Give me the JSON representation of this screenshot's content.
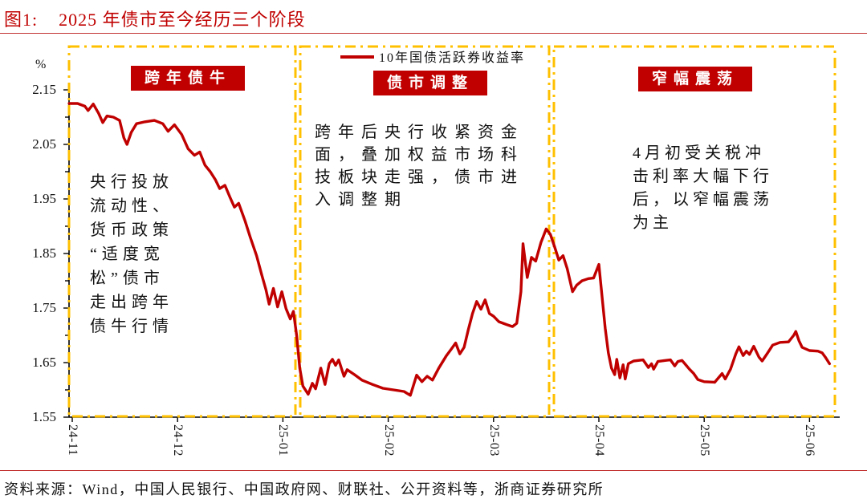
{
  "title": {
    "prefix": "图1:",
    "text": "2025 年债市至今经历三个阶段"
  },
  "footer": {
    "source": "资料来源：Wind，中国人民银行、中国政府网、财联社、公开资料等，浙商证券研究所"
  },
  "colors": {
    "accent_red": "#c00000",
    "box_yellow": "#ffc000",
    "text": "#111111"
  },
  "chart_data": {
    "type": "line",
    "title": "2025 年债市至今经历三个阶段",
    "ylabel": "%",
    "ylim": [
      1.55,
      2.15
    ],
    "y_tick_labels": [
      "2.15",
      "2.05",
      "1.95",
      "1.85",
      "1.75",
      "1.65",
      "1.55"
    ],
    "x_tick_labels": [
      "24-11",
      "24-12",
      "25-01",
      "25-02",
      "25-03",
      "25-04",
      "25-05",
      "25-06"
    ],
    "x_unit": "months since 2024-11 (0 = 24-11, 7 = 25-06)",
    "grid": false,
    "legend_position": "top-center",
    "phases": [
      {
        "label": "跨年债牛",
        "note": "央行投放\n流动性、\n货币政策\n“适度宽\n松”债市\n走出跨年\n债牛行情",
        "x_range": [
          0,
          2.12
        ]
      },
      {
        "label": "债市调整",
        "note": "跨年后央行收紧资金\n面，叠加权益市场科\n技板块走强，债市进\n入调整期",
        "x_range": [
          2.16,
          4.53
        ]
      },
      {
        "label": "窄幅震荡",
        "note": "4月初受关税冲\n击利率大幅下行\n后，以窄幅震荡\n为主",
        "x_range": [
          4.57,
          7.24
        ]
      }
    ],
    "series": [
      {
        "name": "10年国债活跃券收益率",
        "unit": "%",
        "points": [
          [
            -0.03,
            2.125
          ],
          [
            0.05,
            2.125
          ],
          [
            0.12,
            2.12
          ],
          [
            0.15,
            2.112
          ],
          [
            0.2,
            2.124
          ],
          [
            0.25,
            2.107
          ],
          [
            0.29,
            2.09
          ],
          [
            0.33,
            2.102
          ],
          [
            0.39,
            2.1
          ],
          [
            0.45,
            2.094
          ],
          [
            0.49,
            2.062
          ],
          [
            0.52,
            2.05
          ],
          [
            0.56,
            2.072
          ],
          [
            0.61,
            2.088
          ],
          [
            0.68,
            2.091
          ],
          [
            0.78,
            2.094
          ],
          [
            0.86,
            2.088
          ],
          [
            0.91,
            2.074
          ],
          [
            0.97,
            2.086
          ],
          [
            1.04,
            2.068
          ],
          [
            1.1,
            2.042
          ],
          [
            1.16,
            2.03
          ],
          [
            1.21,
            2.036
          ],
          [
            1.26,
            2.012
          ],
          [
            1.31,
            2.0
          ],
          [
            1.36,
            1.985
          ],
          [
            1.4,
            1.969
          ],
          [
            1.45,
            1.975
          ],
          [
            1.5,
            1.952
          ],
          [
            1.54,
            1.935
          ],
          [
            1.58,
            1.942
          ],
          [
            1.64,
            1.91
          ],
          [
            1.69,
            1.88
          ],
          [
            1.75,
            1.846
          ],
          [
            1.8,
            1.81
          ],
          [
            1.84,
            1.783
          ],
          [
            1.87,
            1.757
          ],
          [
            1.91,
            1.786
          ],
          [
            1.95,
            1.752
          ],
          [
            1.99,
            1.78
          ],
          [
            2.03,
            1.749
          ],
          [
            2.07,
            1.73
          ],
          [
            2.1,
            1.744
          ],
          [
            2.13,
            1.7
          ],
          [
            2.16,
            1.64
          ],
          [
            2.19,
            1.607
          ],
          [
            2.24,
            1.592
          ],
          [
            2.28,
            1.612
          ],
          [
            2.31,
            1.602
          ],
          [
            2.36,
            1.64
          ],
          [
            2.4,
            1.61
          ],
          [
            2.44,
            1.648
          ],
          [
            2.47,
            1.656
          ],
          [
            2.5,
            1.645
          ],
          [
            2.53,
            1.655
          ],
          [
            2.58,
            1.625
          ],
          [
            2.61,
            1.637
          ],
          [
            2.68,
            1.628
          ],
          [
            2.75,
            1.618
          ],
          [
            2.85,
            1.61
          ],
          [
            2.95,
            1.603
          ],
          [
            3.05,
            1.6
          ],
          [
            3.15,
            1.597
          ],
          [
            3.21,
            1.59
          ],
          [
            3.27,
            1.627
          ],
          [
            3.32,
            1.615
          ],
          [
            3.37,
            1.625
          ],
          [
            3.42,
            1.618
          ],
          [
            3.48,
            1.64
          ],
          [
            3.55,
            1.662
          ],
          [
            3.6,
            1.675
          ],
          [
            3.64,
            1.686
          ],
          [
            3.68,
            1.666
          ],
          [
            3.72,
            1.678
          ],
          [
            3.76,
            1.71
          ],
          [
            3.8,
            1.74
          ],
          [
            3.84,
            1.762
          ],
          [
            3.88,
            1.748
          ],
          [
            3.92,
            1.765
          ],
          [
            3.96,
            1.74
          ],
          [
            4.0,
            1.735
          ],
          [
            4.05,
            1.725
          ],
          [
            4.12,
            1.72
          ],
          [
            4.18,
            1.716
          ],
          [
            4.22,
            1.722
          ],
          [
            4.26,
            1.78
          ],
          [
            4.28,
            1.868
          ],
          [
            4.32,
            1.806
          ],
          [
            4.36,
            1.843
          ],
          [
            4.4,
            1.836
          ],
          [
            4.45,
            1.87
          ],
          [
            4.5,
            1.895
          ],
          [
            4.54,
            1.885
          ],
          [
            4.58,
            1.862
          ],
          [
            4.62,
            1.838
          ],
          [
            4.66,
            1.846
          ],
          [
            4.7,
            1.822
          ],
          [
            4.75,
            1.78
          ],
          [
            4.79,
            1.792
          ],
          [
            4.84,
            1.8
          ],
          [
            4.9,
            1.804
          ],
          [
            4.95,
            1.805
          ],
          [
            5.0,
            1.83
          ],
          [
            5.03,
            1.772
          ],
          [
            5.06,
            1.713
          ],
          [
            5.09,
            1.668
          ],
          [
            5.12,
            1.64
          ],
          [
            5.15,
            1.628
          ],
          [
            5.17,
            1.656
          ],
          [
            5.2,
            1.622
          ],
          [
            5.23,
            1.646
          ],
          [
            5.25,
            1.62
          ],
          [
            5.28,
            1.648
          ],
          [
            5.33,
            1.653
          ],
          [
            5.42,
            1.655
          ],
          [
            5.47,
            1.641
          ],
          [
            5.5,
            1.648
          ],
          [
            5.52,
            1.638
          ],
          [
            5.56,
            1.652
          ],
          [
            5.63,
            1.654
          ],
          [
            5.68,
            1.655
          ],
          [
            5.72,
            1.644
          ],
          [
            5.75,
            1.652
          ],
          [
            5.79,
            1.654
          ],
          [
            5.82,
            1.647
          ],
          [
            5.86,
            1.638
          ],
          [
            5.9,
            1.63
          ],
          [
            5.94,
            1.619
          ],
          [
            6.0,
            1.615
          ],
          [
            6.1,
            1.614
          ],
          [
            6.17,
            1.63
          ],
          [
            6.2,
            1.62
          ],
          [
            6.25,
            1.638
          ],
          [
            6.3,
            1.666
          ],
          [
            6.33,
            1.679
          ],
          [
            6.37,
            1.663
          ],
          [
            6.4,
            1.671
          ],
          [
            6.43,
            1.665
          ],
          [
            6.47,
            1.68
          ],
          [
            6.52,
            1.66
          ],
          [
            6.55,
            1.653
          ],
          [
            6.6,
            1.667
          ],
          [
            6.65,
            1.682
          ],
          [
            6.72,
            1.687
          ],
          [
            6.8,
            1.688
          ],
          [
            6.85,
            1.7
          ],
          [
            6.87,
            1.707
          ],
          [
            6.9,
            1.69
          ],
          [
            6.93,
            1.678
          ],
          [
            7.0,
            1.672
          ],
          [
            7.08,
            1.671
          ],
          [
            7.12,
            1.668
          ],
          [
            7.15,
            1.66
          ],
          [
            7.19,
            1.648
          ]
        ]
      }
    ]
  }
}
